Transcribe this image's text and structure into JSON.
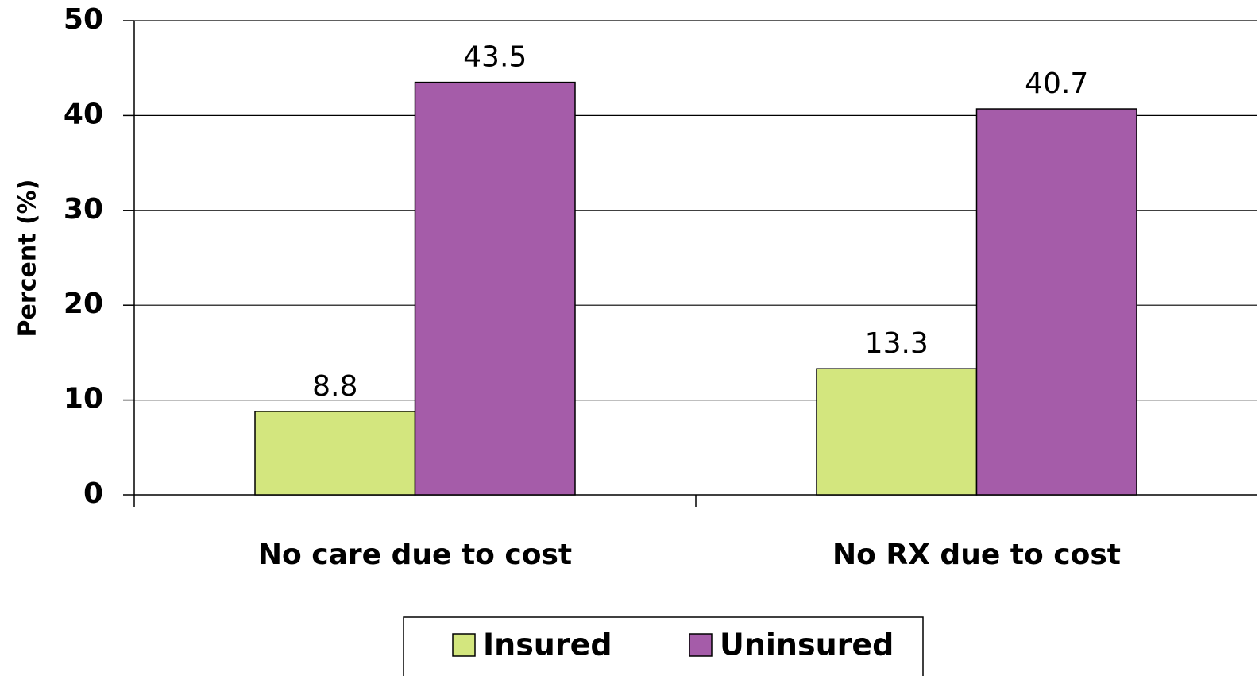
{
  "chart_data": {
    "type": "bar",
    "y_label": "Percent (%)",
    "categories": [
      "No care due to cost",
      "No RX due to cost"
    ],
    "series": [
      {
        "name": "Insured",
        "color": "#d3e67e",
        "values": [
          8.8,
          13.3
        ]
      },
      {
        "name": "Uninsured",
        "color": "#a55ca9",
        "values": [
          43.5,
          40.7
        ]
      }
    ],
    "ylim": [
      0,
      50
    ],
    "yticks": [
      0,
      10,
      20,
      30,
      40,
      50
    ],
    "grid": true,
    "legend": "bottom"
  }
}
